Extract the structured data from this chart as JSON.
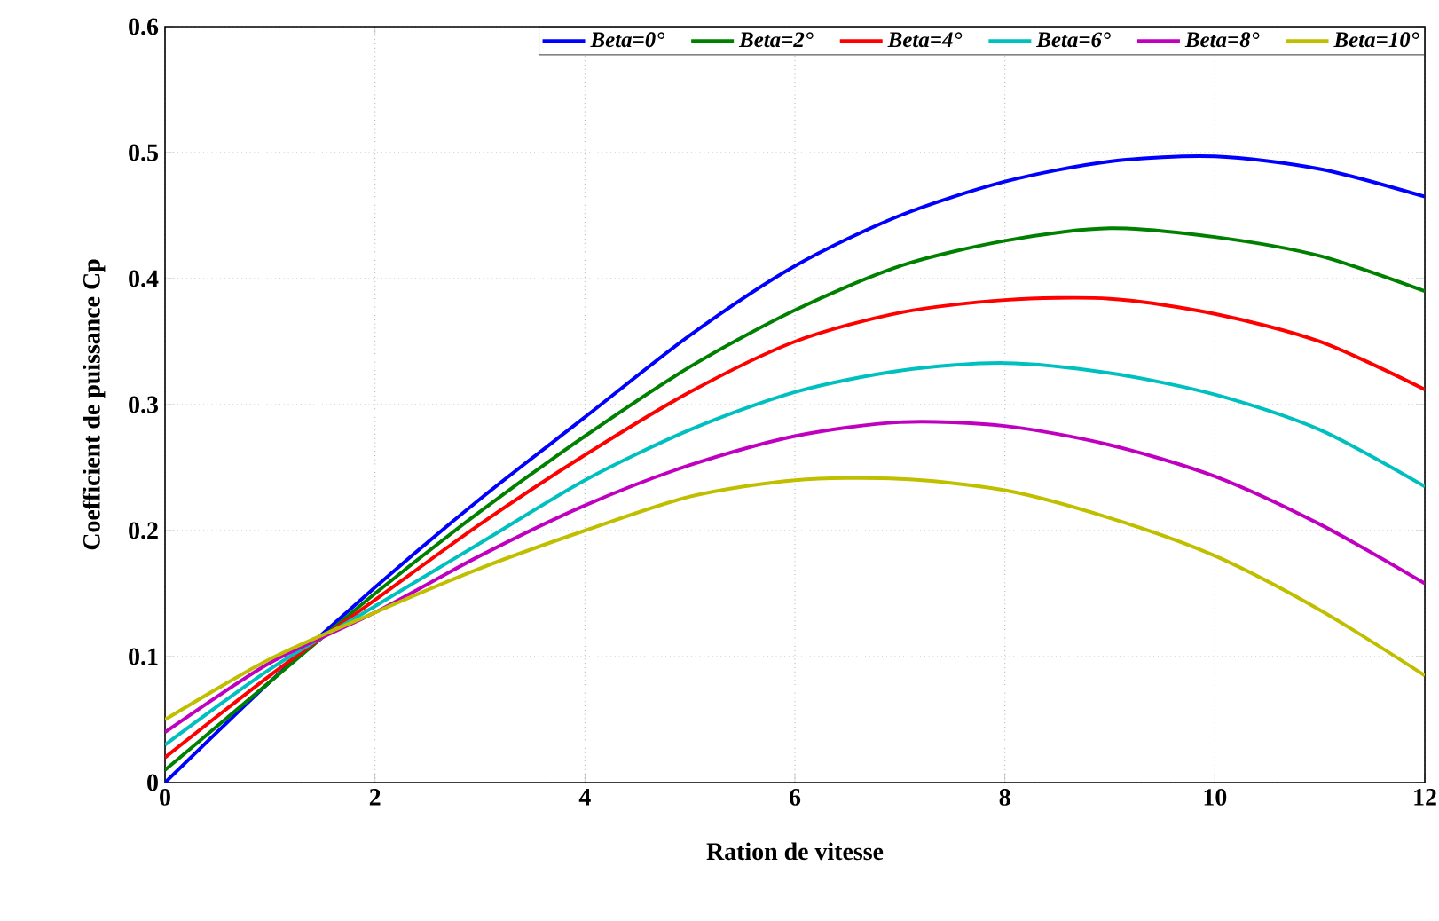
{
  "chart_data": {
    "type": "line",
    "xlabel": "Ration de vitesse",
    "ylabel": "Coefficient de puissance Cp",
    "x": [
      0,
      1,
      2,
      3,
      4,
      5,
      6,
      7,
      8,
      9,
      10,
      11,
      12
    ],
    "xlim": [
      0,
      12
    ],
    "ylim": [
      0,
      0.6
    ],
    "xticks": [
      0,
      2,
      4,
      6,
      8,
      10,
      12
    ],
    "yticks": [
      0,
      0.1,
      0.2,
      0.3,
      0.4,
      0.5,
      0.6
    ],
    "grid": true,
    "legend": "top right",
    "line_style": "solid",
    "marker": "none",
    "series": [
      {
        "name": "Beta=0°",
        "color": "#0000ff",
        "values": [
          0,
          0.08,
          0.155,
          0.225,
          0.29,
          0.355,
          0.41,
          0.45,
          0.477,
          0.493,
          0.497,
          0.487,
          0.465
        ]
      },
      {
        "name": "Beta=2°",
        "color": "#008000",
        "values": [
          0.01,
          0.08,
          0.15,
          0.215,
          0.275,
          0.33,
          0.375,
          0.41,
          0.43,
          0.44,
          0.433,
          0.418,
          0.39
        ]
      },
      {
        "name": "Beta=4°",
        "color": "#ff0000",
        "values": [
          0.02,
          0.085,
          0.145,
          0.205,
          0.26,
          0.31,
          0.35,
          0.373,
          0.383,
          0.384,
          0.372,
          0.35,
          0.312
        ]
      },
      {
        "name": "Beta=6°",
        "color": "#00bfbf",
        "values": [
          0.03,
          0.09,
          0.14,
          0.19,
          0.24,
          0.28,
          0.31,
          0.327,
          0.333,
          0.325,
          0.308,
          0.28,
          0.235
        ]
      },
      {
        "name": "Beta=8°",
        "color": "#bf00bf",
        "values": [
          0.04,
          0.095,
          0.135,
          0.18,
          0.22,
          0.252,
          0.275,
          0.286,
          0.283,
          0.268,
          0.243,
          0.205,
          0.158
        ]
      },
      {
        "name": "Beta=10°",
        "color": "#bfbf00",
        "values": [
          0.05,
          0.098,
          0.135,
          0.17,
          0.2,
          0.227,
          0.24,
          0.241,
          0.232,
          0.21,
          0.18,
          0.137,
          0.085
        ]
      }
    ]
  }
}
